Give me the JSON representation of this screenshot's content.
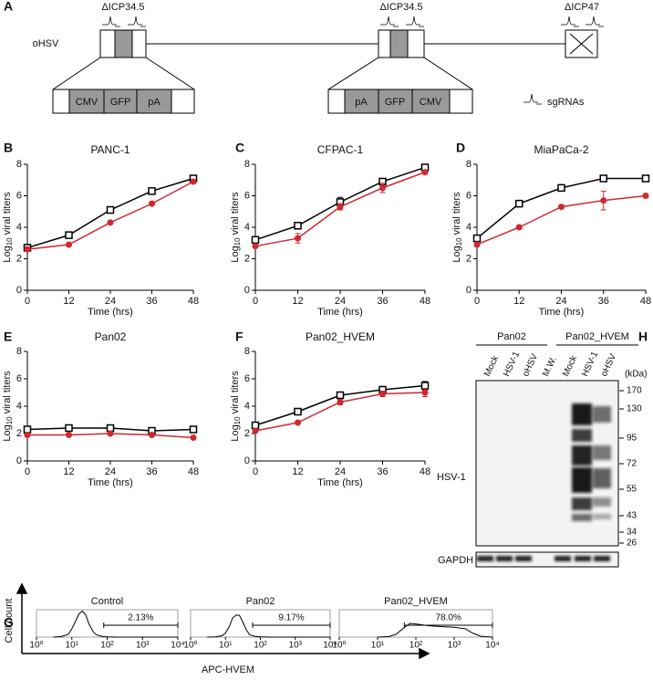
{
  "panel_labels": [
    "A",
    "B",
    "C",
    "D",
    "E",
    "F",
    "G",
    "H"
  ],
  "diagram": {
    "genome_label": "oHSV",
    "deletions": [
      "ΔICP34.5",
      "ΔICP34.5",
      "ΔICP47"
    ],
    "cassette_left": [
      "CMV",
      "GFP",
      "pA"
    ],
    "cassette_right": [
      "pA",
      "GFP",
      "CMV"
    ],
    "legend": "sgRNAs"
  },
  "chart_data": [
    {
      "type": "line",
      "title": "PANC-1",
      "xlabel": "Time (hrs)",
      "ylabel": [
        "Log",
        "10",
        "viral titers"
      ],
      "x": [
        0,
        12,
        24,
        36,
        48
      ],
      "xlim": [
        0,
        48
      ],
      "xticks": [
        0,
        12,
        24,
        36,
        48
      ],
      "ylim": [
        0,
        8
      ],
      "yticks": [
        0,
        2,
        4,
        6,
        8
      ],
      "series": [
        {
          "color": "#000000",
          "marker": "square",
          "values": [
            2.7,
            3.5,
            5.1,
            6.3,
            7.1
          ],
          "errors": [
            0.1,
            0.1,
            0.2,
            0.1,
            0.1
          ]
        },
        {
          "color": "#d0282e",
          "marker": "circle",
          "values": [
            2.6,
            2.9,
            4.3,
            5.5,
            6.9
          ],
          "errors": [
            0.1,
            0.1,
            0.1,
            0.1,
            0.1
          ]
        }
      ]
    },
    {
      "type": "line",
      "title": "CFPAC-1",
      "xlabel": "Time (hrs)",
      "ylabel": [
        "Log",
        "10",
        "viral titers"
      ],
      "x": [
        0,
        12,
        24,
        36,
        48
      ],
      "xlim": [
        0,
        48
      ],
      "xticks": [
        0,
        12,
        24,
        36,
        48
      ],
      "ylim": [
        0,
        8
      ],
      "yticks": [
        0,
        2,
        4,
        6,
        8
      ],
      "series": [
        {
          "color": "#000000",
          "marker": "square",
          "values": [
            3.2,
            4.1,
            5.6,
            6.9,
            7.8
          ],
          "errors": [
            0.1,
            0.1,
            0.3,
            0.1,
            0.1
          ]
        },
        {
          "color": "#d0282e",
          "marker": "circle",
          "values": [
            2.8,
            3.3,
            5.3,
            6.5,
            7.5
          ],
          "errors": [
            0.1,
            0.3,
            0.2,
            0.3,
            0.1
          ]
        }
      ]
    },
    {
      "type": "line",
      "title": "MiaPaCa-2",
      "xlabel": "Time (hrs)",
      "ylabel": [
        "Log",
        "10",
        "viral titers"
      ],
      "x": [
        0,
        12,
        24,
        36,
        48
      ],
      "xlim": [
        0,
        48
      ],
      "xticks": [
        0,
        12,
        24,
        36,
        48
      ],
      "ylim": [
        0,
        8
      ],
      "yticks": [
        0,
        2,
        4,
        6,
        8
      ],
      "series": [
        {
          "color": "#000000",
          "marker": "square",
          "values": [
            3.3,
            5.5,
            6.5,
            7.1,
            7.1
          ],
          "errors": [
            0.1,
            0.1,
            0.1,
            0.1,
            0.1
          ]
        },
        {
          "color": "#d0282e",
          "marker": "circle",
          "values": [
            2.9,
            4.0,
            5.3,
            5.7,
            6.0
          ],
          "errors": [
            0.1,
            0.1,
            0.1,
            0.6,
            0.1
          ]
        }
      ]
    },
    {
      "type": "line",
      "title": "Pan02",
      "xlabel": "Time (hrs)",
      "ylabel": [
        "Log",
        "10",
        "viral titers"
      ],
      "x": [
        0,
        12,
        24,
        36,
        48
      ],
      "xlim": [
        0,
        48
      ],
      "xticks": [
        0,
        12,
        24,
        36,
        48
      ],
      "ylim": [
        0,
        8
      ],
      "yticks": [
        0,
        2,
        4,
        6,
        8
      ],
      "series": [
        {
          "color": "#000000",
          "marker": "square",
          "values": [
            2.3,
            2.4,
            2.4,
            2.2,
            2.3
          ],
          "errors": [
            0.1,
            0.1,
            0.1,
            0.1,
            0.1
          ]
        },
        {
          "color": "#d0282e",
          "marker": "circle",
          "values": [
            1.9,
            1.9,
            2.0,
            1.9,
            1.7
          ],
          "errors": [
            0.1,
            0.1,
            0.1,
            0.1,
            0.1
          ]
        }
      ]
    },
    {
      "type": "line",
      "title": "Pan02_HVEM",
      "xlabel": "Time (hrs)",
      "ylabel": [
        "Log",
        "10",
        "viral titers"
      ],
      "x": [
        0,
        12,
        24,
        36,
        48
      ],
      "xlim": [
        0,
        48
      ],
      "xticks": [
        0,
        12,
        24,
        36,
        48
      ],
      "ylim": [
        0,
        8
      ],
      "yticks": [
        0,
        2,
        4,
        6,
        8
      ],
      "series": [
        {
          "color": "#000000",
          "marker": "square",
          "values": [
            2.6,
            3.6,
            4.8,
            5.2,
            5.5
          ],
          "errors": [
            0.1,
            0.1,
            0.1,
            0.2,
            0.3
          ]
        },
        {
          "color": "#d0282e",
          "marker": "circle",
          "values": [
            2.2,
            2.8,
            4.3,
            4.9,
            5.0
          ],
          "errors": [
            0.1,
            0.1,
            0.2,
            0.2,
            0.3
          ]
        }
      ]
    },
    {
      "type": "density",
      "title": "Control",
      "color": "#000000",
      "xscale": "log",
      "x": [
        3,
        5,
        8,
        10,
        13,
        16,
        20,
        25,
        30,
        40,
        50,
        70,
        100,
        200,
        1000,
        10000
      ],
      "values": [
        0,
        2,
        10,
        30,
        60,
        85,
        95,
        80,
        50,
        20,
        8,
        3,
        1,
        0,
        0,
        0
      ],
      "xlim": [
        1,
        10000
      ],
      "ylim": [
        0,
        100
      ],
      "xticks": [
        {
          "value": 1,
          "label": "10⁰"
        },
        {
          "value": 10,
          "label": "10¹"
        },
        {
          "value": 100,
          "label": "10²"
        },
        {
          "value": 1000,
          "label": "10³"
        },
        {
          "value": 10000,
          "label": "10⁴"
        }
      ],
      "gate": {
        "range": [
          80,
          10000
        ],
        "label": "2.13%"
      }
    },
    {
      "type": "density",
      "title": "Pan02",
      "color": "#000000",
      "xscale": "log",
      "x": [
        3,
        5,
        8,
        10,
        13,
        16,
        20,
        25,
        30,
        40,
        50,
        70,
        100,
        200,
        1000,
        10000
      ],
      "values": [
        0,
        1,
        5,
        15,
        40,
        70,
        80,
        80,
        60,
        25,
        8,
        3,
        1,
        0,
        0,
        0
      ],
      "xlim": [
        1,
        10000
      ],
      "ylim": [
        0,
        100
      ],
      "xticks": [
        {
          "value": 1,
          "label": "10⁰"
        },
        {
          "value": 10,
          "label": "10¹"
        },
        {
          "value": 100,
          "label": "10²"
        },
        {
          "value": 1000,
          "label": "10³"
        },
        {
          "value": 10000,
          "label": "10⁴"
        }
      ],
      "gate": {
        "range": [
          60,
          10000
        ],
        "label": "9.17%"
      }
    },
    {
      "type": "density",
      "title": "Pan02_HVEM",
      "color": "#000000",
      "xscale": "log",
      "x": [
        10,
        20,
        30,
        50,
        70,
        100,
        200,
        300,
        500,
        1000,
        2000,
        3000,
        5000,
        10000
      ],
      "values": [
        0,
        2,
        10,
        35,
        50,
        48,
        42,
        40,
        38,
        36,
        30,
        15,
        3,
        0
      ],
      "xlim": [
        1,
        10000
      ],
      "ylim": [
        0,
        100
      ],
      "xticks": [
        {
          "value": 1,
          "label": "10⁰"
        },
        {
          "value": 10,
          "label": "10¹"
        },
        {
          "value": 100,
          "label": "10²"
        },
        {
          "value": 1000,
          "label": "10³"
        },
        {
          "value": 10000,
          "label": "10⁴"
        }
      ],
      "gate": {
        "range": [
          50,
          10000
        ],
        "label": "78.0%"
      }
    }
  ],
  "flow_axes": {
    "ylabel": "Cell count",
    "xlabel": "APC-HVEM"
  },
  "blot": {
    "groups": [
      "Pan02",
      "Pan02_HVEM"
    ],
    "lanes": [
      "Mock",
      "HSV-1",
      "oHSV",
      "M.W.",
      "Mock",
      "HSV-1",
      "oHSV"
    ],
    "unit": "(kDa)",
    "markers": [
      170,
      130,
      95,
      72,
      55,
      43,
      34,
      26
    ],
    "rows": [
      "HSV-1",
      "GAPDH"
    ]
  }
}
